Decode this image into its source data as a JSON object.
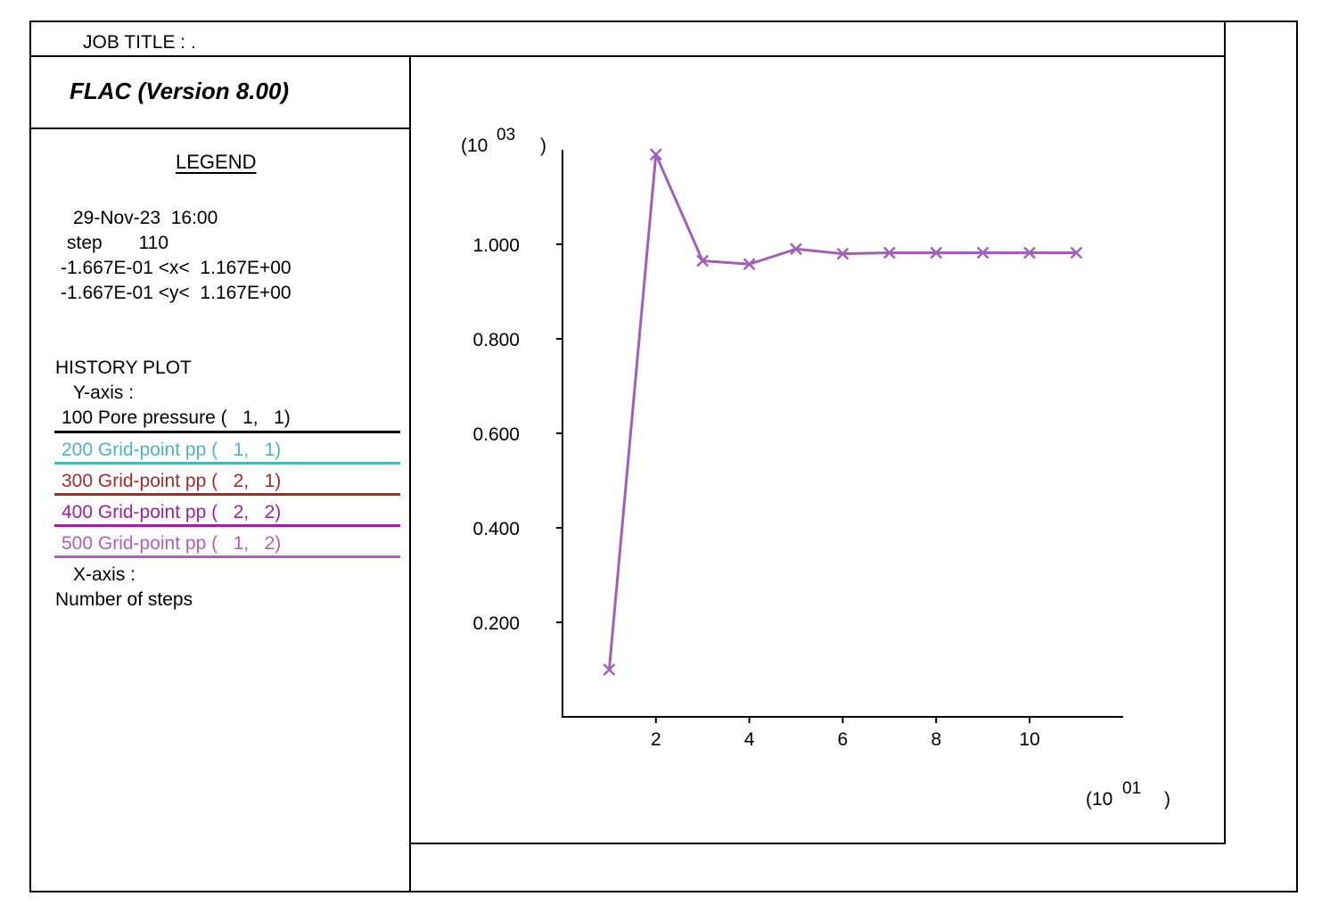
{
  "header": {
    "job_title": "JOB TITLE : ."
  },
  "title_box": {
    "program": "FLAC (Version 8.00)"
  },
  "legend": {
    "heading": "LEGEND",
    "date_line": "29-Nov-23  16:00",
    "step_line": "step       110",
    "x_range": "-1.667E-01 <x<  1.167E+00",
    "y_range": "-1.667E-01 <y<  1.167E+00",
    "plot_type": "HISTORY PLOT",
    "y_axis_label": "Y-axis :",
    "x_axis_label": "X-axis :",
    "x_axis_quantity": "Number of steps",
    "histories": [
      {
        "label": "100 Pore pressure (   1,   1)",
        "color": "#000000"
      },
      {
        "label": "200 Grid-point pp (   1,   1)",
        "color": "#4fb3bf"
      },
      {
        "label": "300 Grid-point pp (   2,   1)",
        "color": "#a52a2a"
      },
      {
        "label": "400 Grid-point pp (   2,   2)",
        "color": "#a020a0"
      },
      {
        "label": "500 Grid-point pp (   1,   2)",
        "color": "#b060b8"
      }
    ]
  },
  "chart_data": {
    "type": "line",
    "x_multiplier_base": "(10",
    "x_multiplier_exp": "01",
    "x_multiplier_close": ")",
    "y_multiplier_base": "(10",
    "y_multiplier_exp": "03",
    "y_multiplier_close": ")",
    "xlim": [
      0,
      12
    ],
    "ylim": [
      0,
      1.2
    ],
    "x_ticks": [
      2,
      4,
      6,
      8,
      10
    ],
    "x_tick_labels": [
      "2",
      "4",
      "6",
      "8",
      "10"
    ],
    "y_ticks": [
      0.2,
      0.4,
      0.6,
      0.8,
      1.0
    ],
    "y_tick_labels": [
      "0.200",
      "0.400",
      "0.600",
      "0.800",
      "1.000"
    ],
    "series": [
      {
        "color": "#a060b8",
        "marker": "x",
        "x": [
          1,
          2,
          3,
          4,
          5,
          6,
          7,
          8,
          9,
          10,
          11
        ],
        "y": [
          0.1,
          1.19,
          0.965,
          0.958,
          0.99,
          0.98,
          0.982,
          0.982,
          0.982,
          0.982,
          0.982
        ]
      }
    ]
  }
}
